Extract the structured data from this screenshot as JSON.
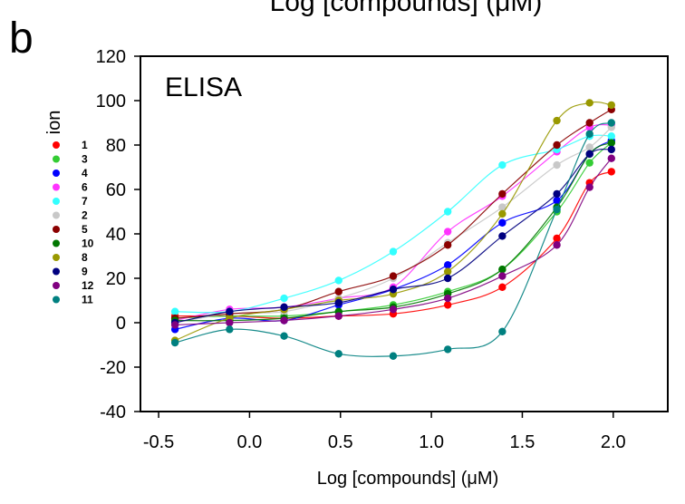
{
  "panel_label": "b",
  "top_caption": "Log [compounds] (μM)",
  "chart_data": {
    "type": "scatter",
    "title": "ELISA",
    "xlabel": "Log [compounds] (μM)",
    "ylabel": "ion",
    "xlim": [
      -0.6,
      2.3
    ],
    "ylim": [
      -40,
      120
    ],
    "xticks": [
      -0.5,
      0.0,
      0.5,
      1.0,
      1.5,
      2.0
    ],
    "xtick_labels": [
      "-0.5",
      "0.0",
      "0.5",
      "1.0",
      "1.5",
      "2.0"
    ],
    "yticks": [
      -40,
      -20,
      0,
      20,
      40,
      60,
      80,
      100,
      120
    ],
    "ytick_labels": [
      "-40",
      "-20",
      "0",
      "20",
      "40",
      "60",
      "80",
      "100",
      "120"
    ],
    "grid": false,
    "legend_position": "left",
    "x": [
      -0.41,
      -0.11,
      0.19,
      0.49,
      0.79,
      1.09,
      1.39,
      1.69,
      1.87,
      1.99
    ],
    "series": [
      {
        "name": "1",
        "color": "#ff0000",
        "values": [
          3,
          3,
          2,
          3,
          4,
          8,
          16,
          38,
          63,
          68
        ]
      },
      {
        "name": "3",
        "color": "#33cc33",
        "values": [
          2,
          3,
          3,
          5,
          8,
          14,
          24,
          50,
          72,
          81
        ]
      },
      {
        "name": "4",
        "color": "#0000ff",
        "values": [
          -3,
          2,
          1,
          8,
          15,
          26,
          45,
          55,
          76,
          82
        ]
      },
      {
        "name": "6",
        "color": "#ff33ff",
        "values": [
          1,
          6,
          7,
          11,
          16,
          41,
          57,
          77,
          88,
          89
        ]
      },
      {
        "name": "7",
        "color": "#33ffff",
        "values": [
          5,
          5,
          11,
          19,
          32,
          50,
          71,
          78,
          84,
          84
        ]
      },
      {
        "name": "2",
        "color": "#c8c8c8",
        "values": [
          0,
          4,
          5,
          11,
          20,
          36,
          52,
          71,
          79,
          88
        ]
      },
      {
        "name": "5",
        "color": "#8b0000",
        "values": [
          2,
          4,
          6,
          14,
          21,
          35,
          58,
          80,
          90,
          96
        ]
      },
      {
        "name": "10",
        "color": "#007700",
        "values": [
          1,
          1,
          2,
          5,
          7,
          13,
          24,
          52,
          76,
          81
        ]
      },
      {
        "name": "8",
        "color": "#999900",
        "values": [
          -8,
          2,
          6,
          10,
          13,
          23,
          49,
          91,
          99,
          98
        ]
      },
      {
        "name": "9",
        "color": "#000080",
        "values": [
          0,
          5,
          7,
          9,
          15,
          20,
          39,
          58,
          76,
          78
        ]
      },
      {
        "name": "12",
        "color": "#800080",
        "values": [
          -1,
          0,
          1,
          3,
          6,
          11,
          21,
          35,
          61,
          74
        ]
      },
      {
        "name": "11",
        "color": "#008080",
        "values": [
          -9,
          -3,
          -6,
          -14,
          -15,
          -12,
          -4,
          51,
          85,
          90
        ]
      }
    ]
  }
}
